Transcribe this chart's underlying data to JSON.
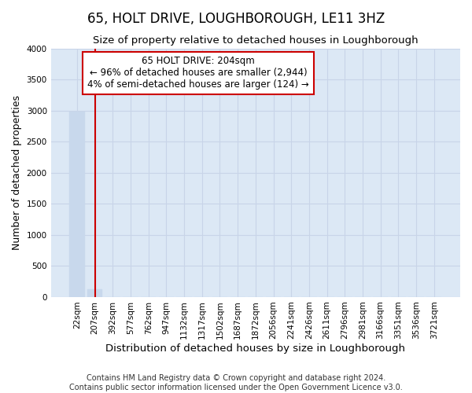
{
  "title": "65, HOLT DRIVE, LOUGHBOROUGH, LE11 3HZ",
  "subtitle": "Size of property relative to detached houses in Loughborough",
  "xlabel": "Distribution of detached houses by size in Loughborough",
  "ylabel": "Number of detached properties",
  "footnote1": "Contains HM Land Registry data © Crown copyright and database right 2024.",
  "footnote2": "Contains public sector information licensed under the Open Government Licence v3.0.",
  "categories": [
    "22sqm",
    "207sqm",
    "392sqm",
    "577sqm",
    "762sqm",
    "947sqm",
    "1132sqm",
    "1317sqm",
    "1502sqm",
    "1687sqm",
    "1872sqm",
    "2056sqm",
    "2241sqm",
    "2426sqm",
    "2611sqm",
    "2796sqm",
    "2981sqm",
    "3166sqm",
    "3351sqm",
    "3536sqm",
    "3721sqm"
  ],
  "values": [
    2980,
    120,
    0,
    0,
    0,
    0,
    0,
    0,
    0,
    0,
    0,
    0,
    0,
    0,
    0,
    0,
    0,
    0,
    0,
    0,
    0
  ],
  "bar_color": "#c8d8ec",
  "bar_edge_color": "#c8d8ec",
  "highlight_index": 1,
  "highlight_line_color": "#cc0000",
  "ylim": [
    0,
    4000
  ],
  "yticks": [
    0,
    500,
    1000,
    1500,
    2000,
    2500,
    3000,
    3500,
    4000
  ],
  "annotation_title": "65 HOLT DRIVE: 204sqm",
  "annotation_line1": "← 96% of detached houses are smaller (2,944)",
  "annotation_line2": "4% of semi-detached houses are larger (124) →",
  "annotation_box_color": "#ffffff",
  "annotation_box_edge_color": "#cc0000",
  "grid_color": "#c8d4e8",
  "axes_bg_color": "#dce8f5",
  "title_fontsize": 12,
  "subtitle_fontsize": 9.5,
  "ylabel_fontsize": 9,
  "xlabel_fontsize": 9.5,
  "tick_fontsize": 7.5,
  "footnote_fontsize": 7
}
